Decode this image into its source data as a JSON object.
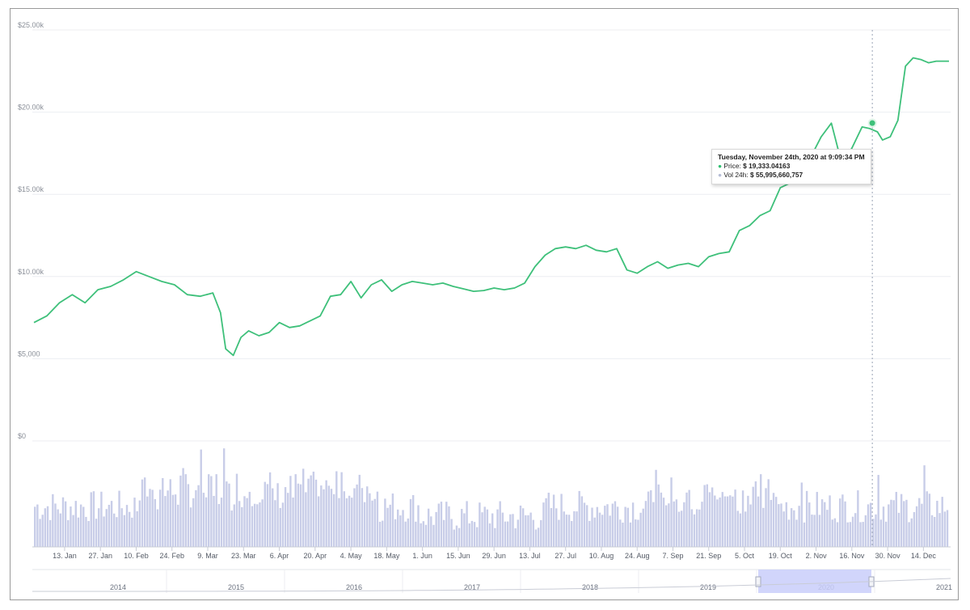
{
  "chart_data": {
    "type": "line",
    "yaxis": {
      "tick_labels": [
        "$25.00k",
        "$20.00k",
        "$15.00k",
        "$10.00k",
        "$5,000",
        "$0"
      ],
      "ylim": [
        0,
        25000
      ]
    },
    "xaxis": {
      "tick_labels": [
        "13. Jan",
        "27. Jan",
        "10. Feb",
        "24. Feb",
        "9. Mar",
        "23. Mar",
        "6. Apr",
        "20. Apr",
        "4. May",
        "18. May",
        "1. Jun",
        "15. Jun",
        "29. Jun",
        "13. Jul",
        "27. Jul",
        "10. Aug",
        "24. Aug",
        "7. Sep",
        "21. Sep",
        "5. Oct",
        "19. Oct",
        "2. Nov",
        "16. Nov",
        "30. Nov",
        "14. Dec"
      ]
    },
    "series": [
      {
        "kind": "price",
        "x_day_of_2020": [
          0,
          5,
          10,
          15,
          20,
          25,
          30,
          35,
          40,
          45,
          50,
          55,
          60,
          65,
          70,
          73,
          75,
          78,
          81,
          84,
          88,
          92,
          96,
          100,
          104,
          108,
          112,
          116,
          120,
          124,
          128,
          132,
          136,
          140,
          144,
          148,
          152,
          156,
          160,
          164,
          168,
          172,
          176,
          180,
          184,
          188,
          192,
          196,
          200,
          204,
          208,
          212,
          216,
          220,
          224,
          228,
          232,
          236,
          240,
          244,
          248,
          252,
          256,
          260,
          264,
          268,
          272,
          276,
          280,
          284,
          288,
          292,
          296,
          300,
          304,
          308,
          312,
          316,
          320,
          324,
          327,
          330,
          332,
          335,
          338,
          341,
          344,
          347,
          350,
          353,
          356,
          358
        ],
        "y": [
          7200,
          7600,
          8400,
          8900,
          8400,
          9200,
          9400,
          9800,
          10300,
          10000,
          9700,
          9500,
          8900,
          8800,
          9000,
          7800,
          5600,
          5200,
          6300,
          6700,
          6400,
          6600,
          7200,
          6900,
          7000,
          7300,
          7600,
          8800,
          8900,
          9700,
          8700,
          9500,
          9800,
          9100,
          9500,
          9700,
          9600,
          9500,
          9600,
          9400,
          9250,
          9100,
          9150,
          9300,
          9200,
          9300,
          9600,
          10600,
          11300,
          11700,
          11800,
          11700,
          11900,
          11600,
          11500,
          11700,
          10400,
          10200,
          10600,
          10900,
          10500,
          10700,
          10800,
          10600,
          11200,
          11400,
          11500,
          12800,
          13100,
          13700,
          14000,
          15400,
          15700,
          16000,
          17300,
          18500,
          19333,
          16900,
          17800,
          19100,
          19000,
          18800,
          18300,
          18500,
          19500,
          22800,
          23300,
          23200,
          23000,
          23100,
          23100,
          23100
        ],
        "color": "#3ec07a"
      }
    ],
    "highlight": {
      "date_text": "Tuesday, November 24th, 2020 at 9:09:34 PM",
      "price_label": "Price:",
      "price_value": "$ 19,333.04163",
      "vol_label": "Vol 24h:",
      "vol_value": "$ 55,995,660,757",
      "x_day_of_2020": 328,
      "y": 19333
    },
    "volume_bars_seed": 7,
    "navigator": {
      "year_labels": [
        "2014",
        "2015",
        "2016",
        "2017",
        "2018",
        "2019",
        "2020",
        "2021"
      ],
      "selected_range": [
        "2020",
        "2021"
      ],
      "selection_color": "#c9cefa"
    },
    "colors": {
      "price_line": "#3ec07a",
      "volume_bar": "#c8cde8",
      "grid": "#eceef2",
      "crosshair": "#9aa3b5"
    }
  }
}
